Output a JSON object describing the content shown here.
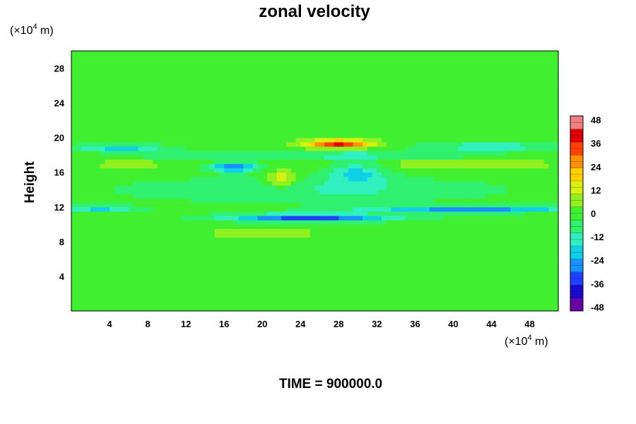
{
  "chart_data": {
    "type": "heatmap",
    "title": "zonal velocity",
    "xlabel": "",
    "ylabel": "Height",
    "x_unit_prefix": "(×10",
    "unit_exponent": "4",
    "unit_suffix": " m)",
    "y_unit_prefix": "(×10",
    "xlim": [
      0,
      51
    ],
    "ylim": [
      0,
      30
    ],
    "x_ticks": [
      4,
      8,
      12,
      16,
      20,
      24,
      28,
      32,
      36,
      40,
      44,
      48
    ],
    "y_ticks": [
      4,
      8,
      12,
      16,
      20,
      24,
      28
    ],
    "colorbar": {
      "range": [
        -50,
        50
      ],
      "ticks": [
        48,
        36,
        24,
        12,
        0,
        -12,
        -24,
        -36,
        -48
      ],
      "colors": [
        "#6a00a8",
        "#1a0ad0",
        "#2040ff",
        "#1890ff",
        "#10d0e8",
        "#30f0c0",
        "#30f070",
        "#40f030",
        "#90f020",
        "#d8f010",
        "#ffd000",
        "#ff9000",
        "#ff4000",
        "#e00000",
        "#f08080"
      ]
    },
    "background_value": 0,
    "features": [
      {
        "x": 28,
        "y": 19.3,
        "sx": 3.5,
        "sy": 0.5,
        "value": 38
      },
      {
        "x": 22,
        "y": 15.2,
        "sx": 1.6,
        "sy": 1.0,
        "value": 18
      },
      {
        "x": 17,
        "y": 16.6,
        "sx": 2.5,
        "sy": 0.5,
        "value": -30
      },
      {
        "x": 25,
        "y": 10.8,
        "sx": 9.0,
        "sy": 0.45,
        "value": -34
      },
      {
        "x": 42,
        "y": 11.8,
        "sx": 12.0,
        "sy": 0.4,
        "value": -26
      },
      {
        "x": 3,
        "y": 11.8,
        "sx": 4.0,
        "sy": 0.4,
        "value": -18
      },
      {
        "x": 5,
        "y": 18.9,
        "sx": 5.0,
        "sy": 0.35,
        "value": -22
      },
      {
        "x": 44,
        "y": 19.0,
        "sx": 7.0,
        "sy": 0.35,
        "value": -20
      },
      {
        "x": 40,
        "y": 17.0,
        "sx": 12.0,
        "sy": 0.6,
        "value": 8
      },
      {
        "x": 6,
        "y": 17.0,
        "sx": 5.0,
        "sy": 0.6,
        "value": 6
      },
      {
        "x": 20,
        "y": 9.0,
        "sx": 6.0,
        "sy": 0.4,
        "value": 10
      },
      {
        "x": 25,
        "y": 14.0,
        "sx": 20.0,
        "sy": 1.5,
        "value": -10
      },
      {
        "x": 25,
        "y": 18.0,
        "sx": 20.0,
        "sy": 0.5,
        "value": -12
      },
      {
        "x": 30,
        "y": 16.0,
        "sx": 3.0,
        "sy": 1.5,
        "value": -18
      }
    ],
    "time_label": "TIME = 900000.0"
  }
}
